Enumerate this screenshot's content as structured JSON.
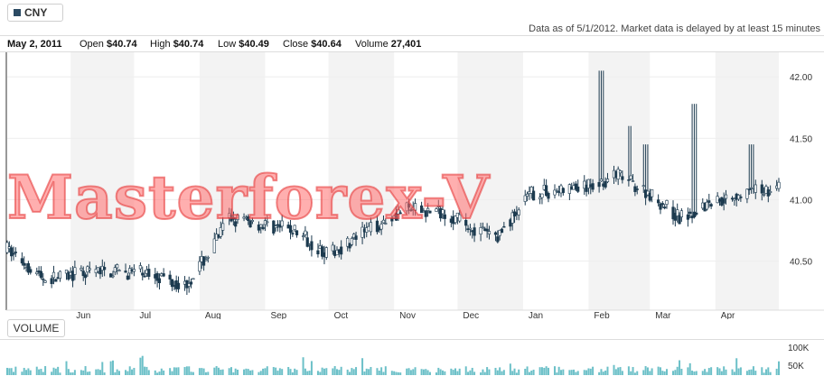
{
  "ticker": {
    "label": "CNY",
    "color": "#2b4a63"
  },
  "as_of_note": "Data as of 5/1/2012. Market data is delayed by at least 15 minutes",
  "info": {
    "date": "May 2, 2011",
    "open_label": "Open",
    "open": "$40.74",
    "high_label": "High",
    "high": "$40.74",
    "low_label": "Low",
    "low": "$40.49",
    "close_label": "Close",
    "close": "$40.64",
    "volume_label": "Volume",
    "volume": "27,401"
  },
  "volume_button": "VOLUME",
  "watermark": "Masterforex-V",
  "chart_data": {
    "type": "candlestick",
    "x_range": [
      "2011-05-02",
      "2012-05-01"
    ],
    "ylim": [
      40.1,
      42.2
    ],
    "y_ticks": [
      42.0,
      41.5,
      41.0,
      40.5
    ],
    "y_tick_labels": [
      "42.00",
      "41.50",
      "41.00",
      "40.50"
    ],
    "x_tick_labels": [
      "Jun",
      "Jul",
      "Aug",
      "Sep",
      "Oct",
      "Nov",
      "Dec",
      "Jan",
      "Feb",
      "Mar",
      "Apr"
    ],
    "trend_knots": [
      [
        "2011-05-02",
        40.6
      ],
      [
        "2011-05-20",
        40.35
      ],
      [
        "2011-06-15",
        40.42
      ],
      [
        "2011-07-10",
        40.4
      ],
      [
        "2011-07-25",
        40.3
      ],
      [
        "2011-08-05",
        40.55
      ],
      [
        "2011-08-15",
        40.85
      ],
      [
        "2011-09-15",
        40.75
      ],
      [
        "2011-10-01",
        40.55
      ],
      [
        "2011-10-20",
        40.75
      ],
      [
        "2011-11-05",
        40.92
      ],
      [
        "2011-11-25",
        40.9
      ],
      [
        "2011-12-10",
        40.75
      ],
      [
        "2011-12-20",
        40.7
      ],
      [
        "2012-01-05",
        41.05
      ],
      [
        "2012-01-31",
        41.1
      ],
      [
        "2012-02-15",
        41.2
      ],
      [
        "2012-03-01",
        41.05
      ],
      [
        "2012-03-15",
        40.85
      ],
      [
        "2012-04-01",
        41.0
      ],
      [
        "2012-04-15",
        41.05
      ],
      [
        "2012-05-01",
        41.1
      ]
    ],
    "spikes": [
      [
        "2012-02-07",
        42.05
      ],
      [
        "2012-03-22",
        41.78
      ],
      [
        "2012-02-20",
        41.6
      ],
      [
        "2012-02-28",
        41.45
      ],
      [
        "2012-04-18",
        41.45
      ]
    ],
    "volume": {
      "y_tick_labels": [
        "100K",
        "50K"
      ],
      "ylim": [
        0,
        120000
      ]
    },
    "colors": {
      "candle": "#1c3a4f",
      "volume": "#6cc0c8",
      "band": "#f3f3f3"
    }
  }
}
